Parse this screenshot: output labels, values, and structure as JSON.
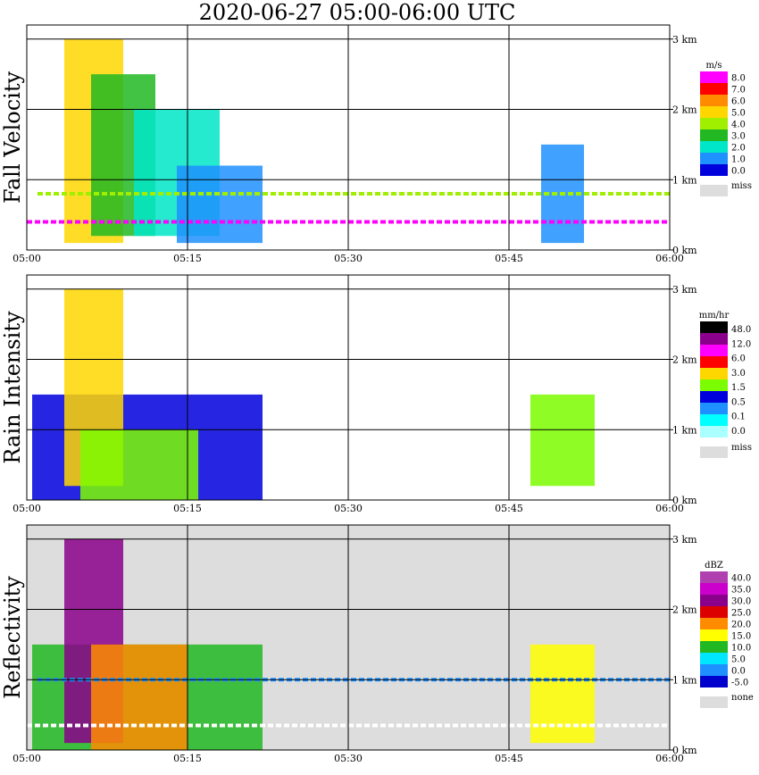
{
  "title": "2020-06-27  05:00-06:00 UTC",
  "chart_data": [
    {
      "type": "heatmap",
      "ylabel": "Fall Velocity",
      "x_ticks": [
        "05:00",
        "05:15",
        "05:30",
        "05:45",
        "06:00"
      ],
      "y_ticks": [
        "0 km",
        "1 km",
        "2 km",
        "3 km"
      ],
      "xlim": [
        0,
        60
      ],
      "ylim": [
        0,
        3.2
      ],
      "grid": true,
      "background": "#ffffff",
      "colorbar": {
        "unit": "m/s",
        "ticks": [
          "8.0",
          "7.0",
          "6.0",
          "5.0",
          "4.0",
          "3.0",
          "2.0",
          "1.0",
          "0.0"
        ],
        "colors": [
          "#ff00ff",
          "#ff0000",
          "#ff8c00",
          "#ffd700",
          "#a0ee00",
          "#22b822",
          "#00e6c8",
          "#1e90ff",
          "#0000dd"
        ],
        "miss_label": "miss",
        "miss_color": "#dddddd"
      },
      "regions": [
        {
          "x": [
            3.5,
            9
          ],
          "y": [
            0.1,
            3.0
          ],
          "value": 5.0
        },
        {
          "x": [
            6,
            12
          ],
          "y": [
            0.2,
            2.5
          ],
          "value": 3.5
        },
        {
          "x": [
            10,
            18
          ],
          "y": [
            0.2,
            2.0
          ],
          "value": 2.0
        },
        {
          "x": [
            14,
            22
          ],
          "y": [
            0.1,
            1.2
          ],
          "value": 1.0
        },
        {
          "x": [
            48,
            52
          ],
          "y": [
            0.1,
            1.5
          ],
          "value": 1.0
        }
      ],
      "lines": [
        {
          "y": 0.4,
          "x": [
            0,
            60
          ],
          "value": 8.0
        },
        {
          "y": 0.8,
          "x": [
            1,
            60
          ],
          "value": 4.0
        }
      ]
    },
    {
      "type": "heatmap",
      "ylabel": "Rain Intensity",
      "x_ticks": [
        "05:00",
        "05:15",
        "05:30",
        "05:45",
        "06:00"
      ],
      "y_ticks": [
        "0 km",
        "1 km",
        "2 km",
        "3 km"
      ],
      "xlim": [
        0,
        60
      ],
      "ylim": [
        0,
        3.2
      ],
      "grid": true,
      "background": "#ffffff",
      "colorbar": {
        "unit": "mm/hr",
        "ticks": [
          "48.0",
          "12.0",
          "6.0",
          "3.0",
          "1.5",
          "0.5",
          "0.1",
          "0.0"
        ],
        "colors": [
          "#000000",
          "#8b008b",
          "#ff00ff",
          "#ff0000",
          "#ffd700",
          "#7cfc00",
          "#0000dd",
          "#1e90ff",
          "#00ffff",
          "#aaffff"
        ],
        "miss_label": "miss",
        "miss_color": "#dddddd"
      },
      "regions": [
        {
          "x": [
            0.5,
            22
          ],
          "y": [
            0.0,
            1.5
          ],
          "value": 0.1
        },
        {
          "x": [
            3.5,
            9
          ],
          "y": [
            0.2,
            3.0
          ],
          "value": 1.5
        },
        {
          "x": [
            5,
            16
          ],
          "y": [
            0.0,
            1.0
          ],
          "value": 0.5
        },
        {
          "x": [
            47,
            53
          ],
          "y": [
            0.2,
            1.5
          ],
          "value": 0.5
        }
      ],
      "lines": []
    },
    {
      "type": "heatmap",
      "ylabel": "Reflectivity",
      "x_ticks": [
        "05:00",
        "05:15",
        "05:30",
        "05:45",
        "06:00"
      ],
      "y_ticks": [
        "0 km",
        "1 km",
        "2 km",
        "3 km"
      ],
      "xlim": [
        0,
        60
      ],
      "ylim": [
        0,
        3.2
      ],
      "grid": true,
      "background": "#dddddd",
      "colorbar": {
        "unit": "dBZ",
        "ticks": [
          "40.0",
          "35.0",
          "30.0",
          "25.0",
          "20.0",
          "15.0",
          "10.0",
          "5.0",
          "0.0",
          "-5.0"
        ],
        "colors": [
          "#b040b0",
          "#cc00cc",
          "#8b008b",
          "#dd0000",
          "#ff8c00",
          "#ffff00",
          "#22b822",
          "#00e6ff",
          "#1e90ff",
          "#0000cc"
        ],
        "miss_label": "none",
        "miss_color": "#dddddd"
      },
      "regions": [
        {
          "x": [
            0.5,
            22
          ],
          "y": [
            0.0,
            1.5
          ],
          "value": 10
        },
        {
          "x": [
            3.5,
            9
          ],
          "y": [
            0.1,
            3.0
          ],
          "value": 30
        },
        {
          "x": [
            6,
            15
          ],
          "y": [
            0.0,
            1.5
          ],
          "value": 20
        },
        {
          "x": [
            47,
            53
          ],
          "y": [
            0.1,
            1.5
          ],
          "value": 15
        }
      ],
      "lines": [
        {
          "y": 0.35,
          "x": [
            0,
            60
          ],
          "value": "none"
        },
        {
          "y": 1.0,
          "x": [
            1,
            60
          ],
          "value": 0.0
        }
      ]
    }
  ]
}
